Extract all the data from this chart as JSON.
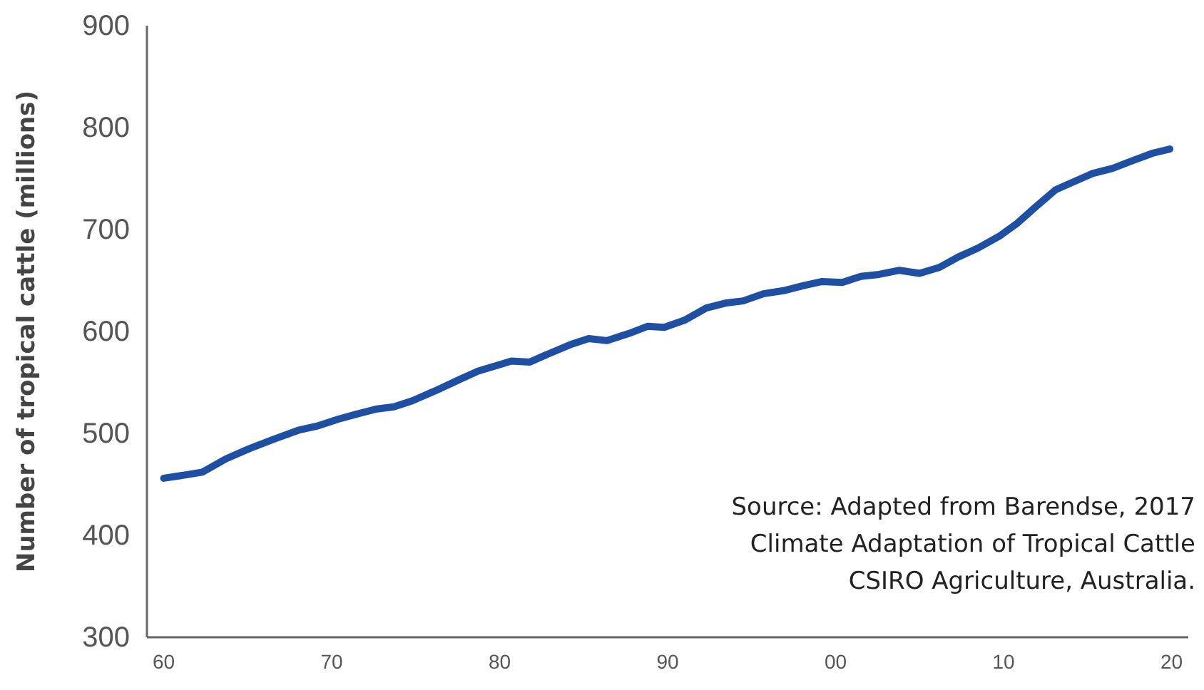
{
  "chart_data": {
    "type": "line",
    "ylabel": "Number of tropical cattle (millions)",
    "annotations": [
      "Source: Adapted from Barendse, 2017\nClimate Adaptation of Tropical Cattle\nCSIRO Agriculture, Australia."
    ],
    "xlim": [
      1959,
      2021
    ],
    "xticks": [
      {
        "value": 1960,
        "label": "60"
      },
      {
        "value": 1970,
        "label": "70"
      },
      {
        "value": 1980,
        "label": "80"
      },
      {
        "value": 1990,
        "label": "90"
      },
      {
        "value": 2000,
        "label": "00"
      },
      {
        "value": 2010,
        "label": "10"
      },
      {
        "value": 2020,
        "label": "20"
      }
    ],
    "ylim": [
      300,
      900
    ],
    "yticks": [
      300,
      400,
      500,
      600,
      700,
      800,
      900
    ],
    "grid": false,
    "marker": "none",
    "line_style": "solid",
    "series": [
      {
        "color": "#1f4fa3",
        "x": [
          1960,
          1961.2,
          1962.3,
          1963.7,
          1965.1,
          1966.5,
          1968.0,
          1969.1,
          1970.4,
          1971.5,
          1972.7,
          1973.7,
          1974.8,
          1976.2,
          1977.5,
          1978.7,
          1979.9,
          1980.7,
          1981.8,
          1982.9,
          1984.2,
          1985.3,
          1986.4,
          1987.7,
          1988.8,
          1989.8,
          1991.0,
          1992.3,
          1993.5,
          1994.5,
          1995.7,
          1996.9,
          1998.1,
          1999.2,
          2000.4,
          2001.5,
          2002.6,
          2003.8,
          2005.0,
          2006.2,
          2007.3,
          2008.5,
          2009.8,
          2010.8,
          2011.9,
          2013.1,
          2014.2,
          2015.3,
          2016.5,
          2017.6,
          2018.9,
          2019.9
        ],
        "values": [
          456,
          459,
          462,
          475,
          485,
          494,
          503,
          507,
          514,
          519,
          524,
          526,
          532,
          542,
          552,
          561,
          567,
          571,
          570,
          578,
          587,
          593,
          591,
          598,
          605,
          604,
          611,
          623,
          628,
          630,
          637,
          640,
          645,
          649,
          648,
          654,
          656,
          660,
          657,
          663,
          673,
          682,
          694,
          706,
          722,
          739,
          747,
          755,
          760,
          767,
          775,
          779
        ]
      }
    ]
  }
}
